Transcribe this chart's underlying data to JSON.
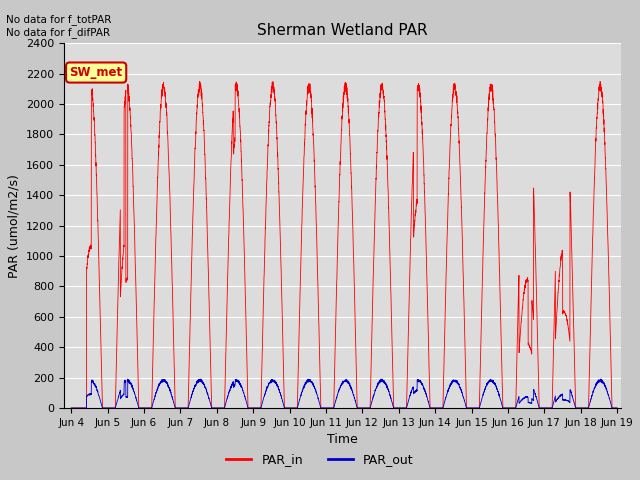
{
  "title": "Sherman Wetland PAR",
  "xlabel": "Time",
  "ylabel": "PAR (umol/m2/s)",
  "ylim": [
    0,
    2400
  ],
  "yticks": [
    0,
    200,
    400,
    600,
    800,
    1000,
    1200,
    1400,
    1600,
    1800,
    2000,
    2200,
    2400
  ],
  "annotation_text": "No data for f_totPAR\nNo data for f_difPAR",
  "legend_label_red": "PAR_in",
  "legend_label_blue": "PAR_out",
  "box_label": "SW_met",
  "box_facecolor": "#ffff99",
  "box_edgecolor": "#cc0000",
  "line_color_red": "#ff0000",
  "line_color_blue": "#0000cc",
  "fig_facecolor": "#c8c8c8",
  "plot_bg_color": "#dcdcdc",
  "n_days": 15,
  "day_start": 4,
  "points_per_day": 288
}
